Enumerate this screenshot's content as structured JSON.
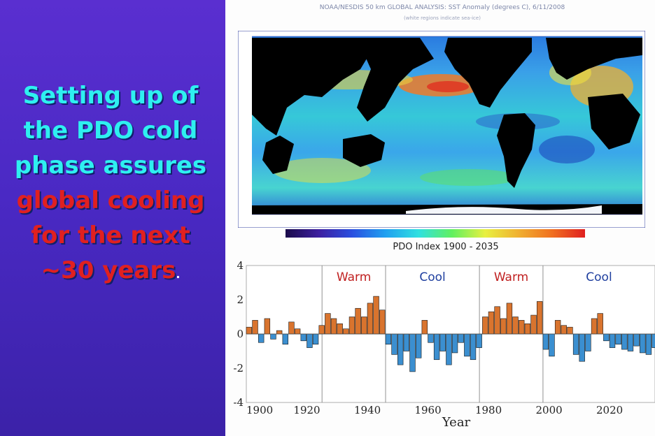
{
  "slide": {
    "lines": [
      {
        "text": "Setting up of",
        "color": "#2ef0f0"
      },
      {
        "text": "the PDO cold",
        "color": "#2ef0f0"
      },
      {
        "text": "phase assures",
        "color": "#2ef0f0"
      },
      {
        "text": "global cooling",
        "color": "#e02020"
      },
      {
        "text": "for the next",
        "color": "#e02020"
      },
      {
        "text": "~30 years",
        "color": "#e02020"
      }
    ],
    "trailing_period": "."
  },
  "map": {
    "title": "NOAA/NESDIS 50 km GLOBAL ANALYSIS: SST Anomaly (degrees C), 6/11/2008",
    "subtitle": "(white regions indicate sea-ice)"
  },
  "chart_data": {
    "type": "bar",
    "title": "PDO Index 1900 - 2035",
    "xlabel": "Year",
    "ylabel": "",
    "xlim": [
      1900,
      2035
    ],
    "ylim": [
      -4,
      4
    ],
    "x_ticks": [
      "1900",
      "1920",
      "1940",
      "1960",
      "1980",
      "2000",
      "2020"
    ],
    "y_ticks": [
      "4",
      "2",
      "0",
      "-2",
      "-4"
    ],
    "phases": [
      {
        "label": "Warm",
        "start": 1925,
        "end": 1946,
        "color": "#c02020"
      },
      {
        "label": "Cool",
        "start": 1946,
        "end": 1977,
        "color": "#1f3f9f"
      },
      {
        "label": "Warm",
        "start": 1977,
        "end": 1998,
        "color": "#c02020"
      },
      {
        "label": "Cool",
        "start": 1998,
        "end": 2035,
        "color": "#1f3f9f"
      }
    ],
    "phase_boundaries": [
      1925,
      1946,
      1977,
      1998
    ],
    "years": [
      1900,
      1902,
      1904,
      1906,
      1908,
      1910,
      1912,
      1914,
      1916,
      1918,
      1920,
      1922,
      1924,
      1926,
      1928,
      1930,
      1932,
      1934,
      1936,
      1938,
      1940,
      1942,
      1944,
      1946,
      1948,
      1950,
      1952,
      1954,
      1956,
      1958,
      1960,
      1962,
      1964,
      1966,
      1968,
      1970,
      1972,
      1974,
      1976,
      1978,
      1980,
      1982,
      1984,
      1986,
      1988,
      1990,
      1992,
      1994,
      1996,
      1998,
      2000,
      2002,
      2004,
      2006,
      2008,
      2010,
      2012,
      2014,
      2016,
      2018,
      2020,
      2022,
      2024,
      2026,
      2028,
      2030,
      2032,
      2034
    ],
    "values": [
      0.4,
      0.8,
      -0.5,
      0.9,
      -0.3,
      0.2,
      -0.6,
      0.7,
      0.3,
      -0.4,
      -0.8,
      -0.6,
      0.5,
      1.2,
      0.9,
      0.6,
      0.3,
      1.0,
      1.5,
      1.0,
      1.8,
      2.2,
      1.4,
      -0.6,
      -1.2,
      -1.8,
      -1.0,
      -2.2,
      -1.4,
      0.8,
      -0.5,
      -1.5,
      -1.0,
      -1.8,
      -1.1,
      -0.5,
      -1.3,
      -1.5,
      -0.8,
      1.0,
      1.3,
      1.6,
      0.9,
      1.8,
      1.0,
      0.8,
      0.6,
      1.1,
      1.9,
      -0.9,
      -1.3,
      0.8,
      0.5,
      0.4,
      -1.2,
      -1.6,
      -1.0,
      0.9,
      1.2,
      -0.4,
      -0.8,
      -0.6,
      -0.9,
      -1.0,
      -0.7,
      -1.1,
      -1.2,
      -0.8
    ],
    "positive_color": "#d9742e",
    "negative_color": "#3b8fd0"
  }
}
